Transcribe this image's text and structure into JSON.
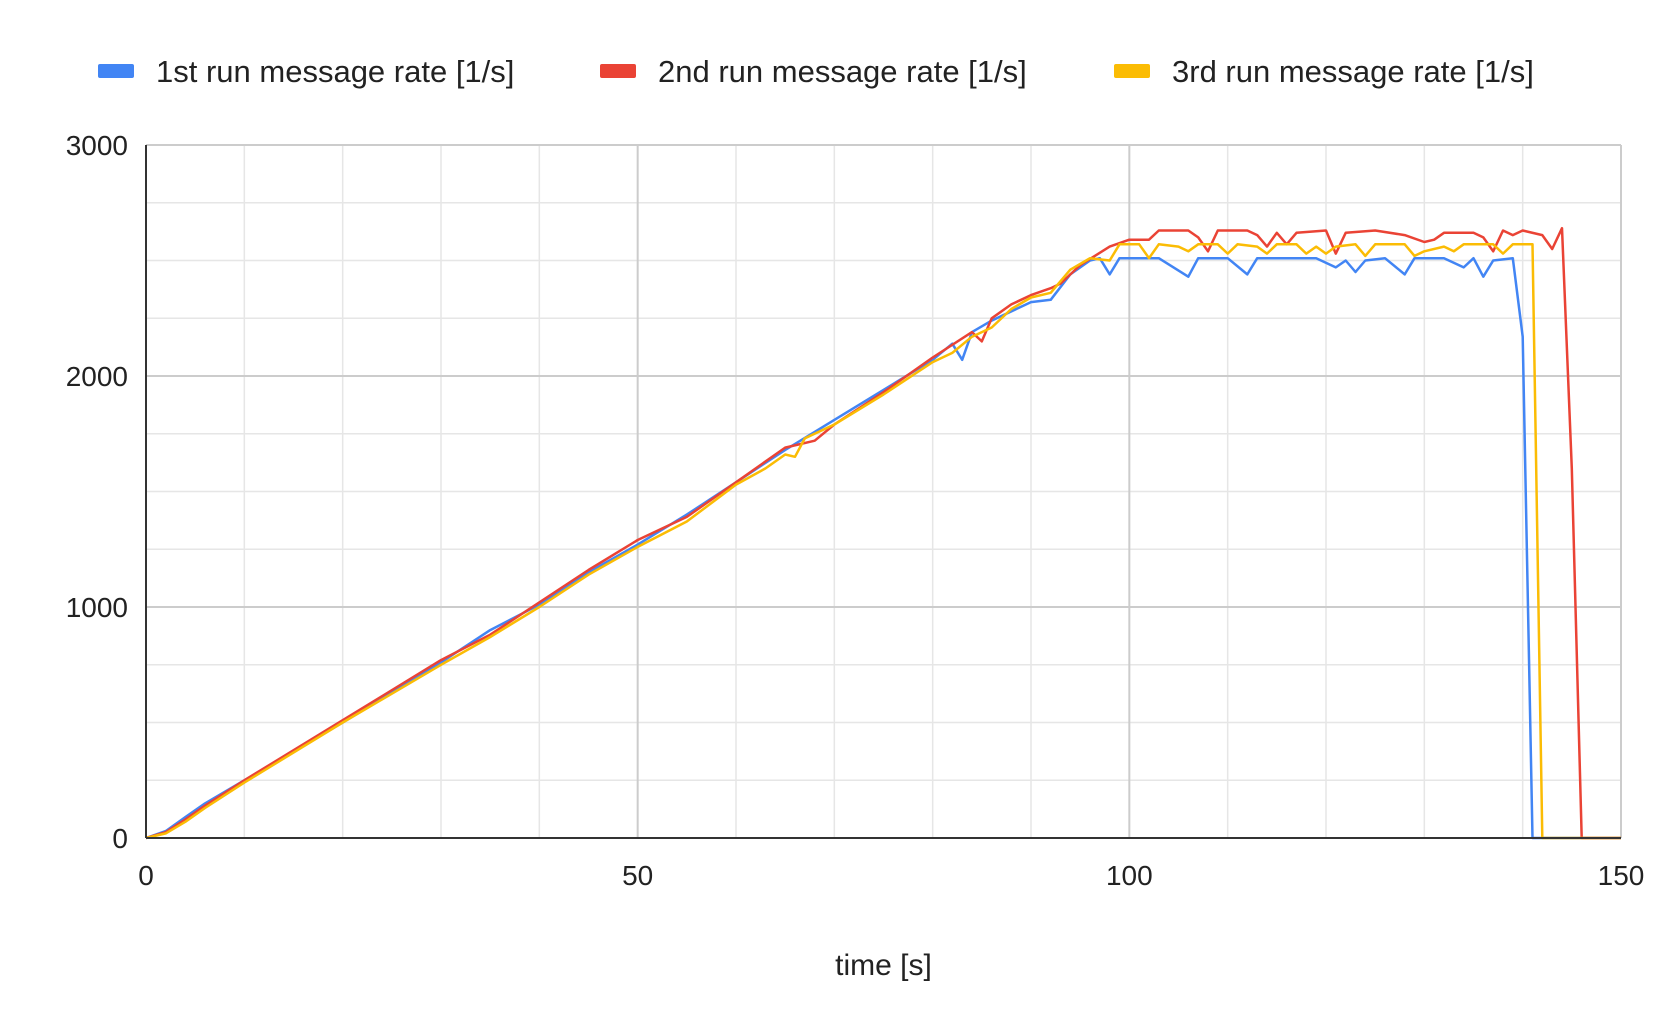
{
  "chart_data": {
    "type": "line",
    "title": "",
    "xlabel": "time [s]",
    "ylabel": "",
    "xlim": [
      0,
      150
    ],
    "ylim": [
      0,
      3000
    ],
    "x_ticks": [
      0,
      50,
      100,
      150
    ],
    "y_ticks": [
      0,
      1000,
      2000,
      3000
    ],
    "grid": true,
    "legend_position": "top",
    "series": [
      {
        "name": "1st run message rate [1/s]",
        "color": "#4285F4",
        "points": [
          [
            0,
            0
          ],
          [
            2,
            30
          ],
          [
            4,
            90
          ],
          [
            6,
            150
          ],
          [
            10,
            250
          ],
          [
            20,
            500
          ],
          [
            30,
            760
          ],
          [
            35,
            900
          ],
          [
            40,
            1010
          ],
          [
            45,
            1150
          ],
          [
            50,
            1270
          ],
          [
            55,
            1400
          ],
          [
            60,
            1540
          ],
          [
            65,
            1680
          ],
          [
            70,
            1810
          ],
          [
            75,
            1940
          ],
          [
            80,
            2070
          ],
          [
            82,
            2140
          ],
          [
            83,
            2070
          ],
          [
            84,
            2190
          ],
          [
            86,
            2240
          ],
          [
            90,
            2320
          ],
          [
            92,
            2330
          ],
          [
            94,
            2440
          ],
          [
            96,
            2500
          ],
          [
            97,
            2510
          ],
          [
            98,
            2440
          ],
          [
            99,
            2510
          ],
          [
            103,
            2510
          ],
          [
            106,
            2430
          ],
          [
            107,
            2510
          ],
          [
            110,
            2510
          ],
          [
            112,
            2440
          ],
          [
            113,
            2510
          ],
          [
            117,
            2510
          ],
          [
            119,
            2510
          ],
          [
            121,
            2470
          ],
          [
            122,
            2500
          ],
          [
            123,
            2450
          ],
          [
            124,
            2500
          ],
          [
            126,
            2510
          ],
          [
            128,
            2440
          ],
          [
            129,
            2510
          ],
          [
            132,
            2510
          ],
          [
            134,
            2470
          ],
          [
            135,
            2510
          ],
          [
            136,
            2430
          ],
          [
            137,
            2500
          ],
          [
            139,
            2510
          ],
          [
            140,
            2170
          ],
          [
            141,
            0
          ],
          [
            150,
            0
          ]
        ]
      },
      {
        "name": "2nd run message rate [1/s]",
        "color": "#EA4335",
        "points": [
          [
            0,
            0
          ],
          [
            2,
            25
          ],
          [
            4,
            80
          ],
          [
            6,
            140
          ],
          [
            10,
            250
          ],
          [
            20,
            510
          ],
          [
            30,
            770
          ],
          [
            35,
            880
          ],
          [
            40,
            1020
          ],
          [
            45,
            1160
          ],
          [
            50,
            1290
          ],
          [
            55,
            1390
          ],
          [
            60,
            1540
          ],
          [
            65,
            1690
          ],
          [
            68,
            1720
          ],
          [
            70,
            1790
          ],
          [
            75,
            1930
          ],
          [
            80,
            2080
          ],
          [
            84,
            2190
          ],
          [
            85,
            2150
          ],
          [
            86,
            2250
          ],
          [
            88,
            2310
          ],
          [
            90,
            2350
          ],
          [
            92,
            2380
          ],
          [
            93,
            2400
          ],
          [
            95,
            2480
          ],
          [
            98,
            2560
          ],
          [
            100,
            2590
          ],
          [
            102,
            2590
          ],
          [
            103,
            2630
          ],
          [
            106,
            2630
          ],
          [
            107,
            2600
          ],
          [
            108,
            2540
          ],
          [
            109,
            2630
          ],
          [
            112,
            2630
          ],
          [
            113,
            2610
          ],
          [
            114,
            2560
          ],
          [
            115,
            2620
          ],
          [
            116,
            2570
          ],
          [
            117,
            2620
          ],
          [
            120,
            2630
          ],
          [
            121,
            2530
          ],
          [
            122,
            2620
          ],
          [
            125,
            2630
          ],
          [
            128,
            2610
          ],
          [
            130,
            2580
          ],
          [
            131,
            2590
          ],
          [
            132,
            2620
          ],
          [
            135,
            2620
          ],
          [
            136,
            2600
          ],
          [
            137,
            2540
          ],
          [
            138,
            2630
          ],
          [
            139,
            2610
          ],
          [
            140,
            2630
          ],
          [
            142,
            2610
          ],
          [
            143,
            2550
          ],
          [
            144,
            2640
          ],
          [
            145,
            1600
          ],
          [
            146,
            0
          ],
          [
            150,
            0
          ]
        ]
      },
      {
        "name": "3rd run message rate [1/s]",
        "color": "#FBBC04",
        "points": [
          [
            0,
            0
          ],
          [
            2,
            20
          ],
          [
            4,
            70
          ],
          [
            6,
            130
          ],
          [
            10,
            240
          ],
          [
            20,
            500
          ],
          [
            30,
            750
          ],
          [
            35,
            870
          ],
          [
            40,
            1000
          ],
          [
            45,
            1140
          ],
          [
            50,
            1260
          ],
          [
            55,
            1370
          ],
          [
            60,
            1530
          ],
          [
            63,
            1600
          ],
          [
            65,
            1660
          ],
          [
            66,
            1650
          ],
          [
            67,
            1730
          ],
          [
            70,
            1790
          ],
          [
            75,
            1920
          ],
          [
            80,
            2060
          ],
          [
            82,
            2100
          ],
          [
            84,
            2170
          ],
          [
            86,
            2210
          ],
          [
            88,
            2290
          ],
          [
            90,
            2340
          ],
          [
            92,
            2360
          ],
          [
            94,
            2460
          ],
          [
            96,
            2510
          ],
          [
            98,
            2500
          ],
          [
            99,
            2570
          ],
          [
            101,
            2570
          ],
          [
            102,
            2510
          ],
          [
            103,
            2570
          ],
          [
            105,
            2560
          ],
          [
            106,
            2540
          ],
          [
            107,
            2570
          ],
          [
            109,
            2570
          ],
          [
            110,
            2530
          ],
          [
            111,
            2570
          ],
          [
            113,
            2560
          ],
          [
            114,
            2530
          ],
          [
            115,
            2570
          ],
          [
            117,
            2570
          ],
          [
            118,
            2530
          ],
          [
            119,
            2560
          ],
          [
            120,
            2530
          ],
          [
            121,
            2560
          ],
          [
            123,
            2570
          ],
          [
            124,
            2520
          ],
          [
            125,
            2570
          ],
          [
            128,
            2570
          ],
          [
            129,
            2520
          ],
          [
            130,
            2540
          ],
          [
            132,
            2560
          ],
          [
            133,
            2540
          ],
          [
            134,
            2570
          ],
          [
            137,
            2570
          ],
          [
            138,
            2530
          ],
          [
            139,
            2570
          ],
          [
            140,
            2570
          ],
          [
            141,
            2570
          ],
          [
            142,
            0
          ],
          [
            150,
            0
          ]
        ]
      }
    ]
  }
}
